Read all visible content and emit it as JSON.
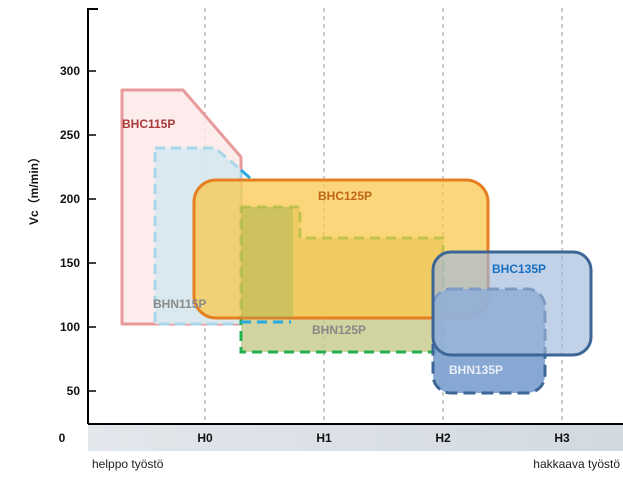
{
  "chart_data": {
    "type": "area",
    "ylabel": "Vc（m/min）",
    "ylim": [
      0,
      350
    ],
    "yticks": [
      50,
      100,
      150,
      200,
      250,
      300
    ],
    "origin_label": "0",
    "x_categories": [
      "H0",
      "H1",
      "H2",
      "H3"
    ],
    "x_note_left": "helppo työstö",
    "x_note_right": "hakkaava työstö",
    "grid": "vertical dashed lines at H0–H3",
    "zones": [
      {
        "name": "BHC115P",
        "color": "#e89a9a",
        "fill": "#fbe9e9",
        "border": "solid",
        "vc_min": 102,
        "vc_max": 286,
        "x_from": -0.7,
        "x_to": 0.3
      },
      {
        "name": "BHN115P",
        "color": "#a9d6ea",
        "fill": "#d6e9ef",
        "border": "dashed",
        "vc_min": 102,
        "vc_max": 241,
        "x_from": -0.43,
        "x_to": 0.3
      },
      {
        "name": "BHC125P",
        "color": "#e67e22",
        "fill": "#f9c84e",
        "border": "solid",
        "vc_min": 102,
        "vc_max": 216,
        "x_from": -0.1,
        "x_to": 2.4
      },
      {
        "name": "BHN125P",
        "color": "#22b14c",
        "fill": "#c5c98a",
        "border": "dashed",
        "vc_min": 80,
        "vc_max": 195,
        "x_from": 0.3,
        "x_to": 2.03
      },
      {
        "name": "BHC135P",
        "color": "#3d6696",
        "fill": "#9fb8dc",
        "border": "solid",
        "vc_min": 78,
        "vc_max": 158,
        "x_from": 1.93,
        "x_to": 3.25
      },
      {
        "name": "BHN135P",
        "color": "#3d6696",
        "fill": "#7b9ecf",
        "border": "dashed",
        "vc_min": 48,
        "vc_max": 128,
        "x_from": 1.93,
        "x_to": 2.86
      }
    ]
  }
}
